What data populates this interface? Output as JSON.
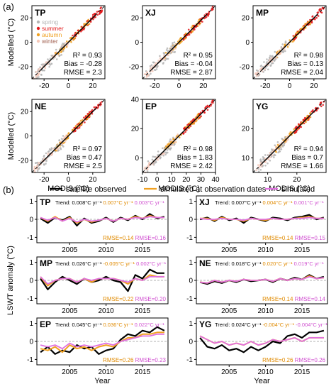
{
  "panel_a_label": "(a)",
  "panel_b_label": "(b)",
  "scatter": {
    "ylabel": "Modelled (°C)",
    "xlabel": "MODIS (°C)",
    "legend": [
      {
        "name": "spring",
        "color": "#b5b5b5"
      },
      {
        "name": "summer",
        "color": "#e31a1c"
      },
      {
        "name": "autumn",
        "color": "#f0a020"
      },
      {
        "name": "winter",
        "color": "#f6c8b8"
      }
    ],
    "panels": [
      {
        "id": "TP",
        "xlim": [
          -30,
          30
        ],
        "ylim": [
          -30,
          30
        ],
        "xticks": [
          -20,
          0,
          20
        ],
        "yticks": [
          -20,
          0,
          20
        ],
        "r2": "R² = 0.93",
        "bias": "Bias = -0.28",
        "rmse": "RMSE = 2.3"
      },
      {
        "id": "XJ",
        "xlim": [
          -30,
          30
        ],
        "ylim": [
          -30,
          30
        ],
        "xticks": [
          -20,
          0,
          20
        ],
        "yticks": [
          -20,
          0,
          20
        ],
        "r2": "R² = 0.95",
        "bias": "Bias = -0.04",
        "rmse": "RMSE = 2.87"
      },
      {
        "id": "MP",
        "xlim": [
          -30,
          30
        ],
        "ylim": [
          -30,
          30
        ],
        "xticks": [
          -20,
          0,
          20
        ],
        "yticks": [
          -20,
          0,
          20
        ],
        "r2": "R² = 0.98",
        "bias": "Bias = 0.13",
        "rmse": "RMSE = 2.04"
      },
      {
        "id": "NE",
        "xlim": [
          -30,
          30
        ],
        "ylim": [
          -30,
          30
        ],
        "xticks": [
          -20,
          0,
          20
        ],
        "yticks": [
          -20,
          0,
          20
        ],
        "r2": "R² = 0.97",
        "bias": "Bias = 0.47",
        "rmse": "RMSE = 2.5"
      },
      {
        "id": "EP",
        "xlim": [
          -10,
          40
        ],
        "ylim": [
          -10,
          40
        ],
        "xticks": [
          -10,
          0,
          10,
          20,
          30,
          40
        ],
        "yticks": [
          0,
          20,
          40
        ],
        "r2": "R² = 0.98",
        "bias": "Bias = 1.83",
        "rmse": "RMSE = 2.42"
      },
      {
        "id": "YG",
        "xlim": [
          5,
          30
        ],
        "ylim": [
          5,
          30
        ],
        "xticks": [
          10,
          20
        ],
        "yticks": [
          10,
          20
        ],
        "r2": "R² = 0.94",
        "bias": "Bias = 0.7",
        "rmse": "RMSE = 1.66"
      }
    ]
  },
  "timeseries": {
    "ylabel": "LSWT anomaly (°C)",
    "xlabel": "Year",
    "legend": [
      {
        "name": "satellite observed",
        "color": "#000000"
      },
      {
        "name": "simulated at observation dates",
        "color": "#f0a020"
      },
      {
        "name": "simulated",
        "color": "#e070e0"
      }
    ],
    "years": [
      2001,
      2002,
      2003,
      2004,
      2005,
      2006,
      2007,
      2008,
      2009,
      2010,
      2011,
      2012,
      2013,
      2014,
      2015,
      2016,
      2017,
      2018
    ],
    "xticks": [
      2005,
      2010,
      2015
    ],
    "yticks": [
      -1,
      0,
      1
    ],
    "ylim": [
      -1.3,
      1.3
    ],
    "panels": [
      {
        "id": "TP",
        "trend_label": "Trend:",
        "trend_obs": "0.008°C yr⁻¹",
        "trend_simobs": "0.007°C yr⁻¹",
        "trend_sim": "0.003°C yr⁻¹",
        "rmse_simobs": "RMSE=0.14",
        "rmse_sim": "RMSE=0.16",
        "series": {
          "observed": [
            0.05,
            -0.2,
            0.1,
            -0.05,
            0.15,
            -0.35,
            0.05,
            -0.2,
            -0.1,
            0.1,
            -0.15,
            0.1,
            -0.05,
            0.2,
            0.0,
            0.3,
            0.05,
            0.15
          ],
          "simobs": [
            0.1,
            -0.1,
            0.15,
            -0.1,
            0.1,
            -0.2,
            0.0,
            -0.15,
            -0.05,
            0.05,
            -0.1,
            0.05,
            0.0,
            0.15,
            0.05,
            0.2,
            0.1,
            0.1
          ],
          "sim": [
            0.1,
            -0.05,
            0.1,
            -0.1,
            0.05,
            -0.15,
            0.0,
            -0.1,
            -0.05,
            0.05,
            -0.1,
            0.05,
            0.0,
            0.1,
            0.05,
            0.15,
            0.1,
            0.1
          ]
        }
      },
      {
        "id": "XJ",
        "trend_label": "Trend:",
        "trend_obs": "0.007°C yr⁻¹",
        "trend_simobs": "0.004°C yr⁻¹",
        "trend_sim": "0.001°C yr⁻¹",
        "rmse_simobs": "RMSE=0.14",
        "rmse_sim": "RMSE=0.15",
        "series": {
          "observed": [
            0.0,
            0.1,
            -0.1,
            0.15,
            -0.05,
            0.05,
            -0.2,
            0.1,
            0.0,
            -0.1,
            0.1,
            0.05,
            -0.05,
            0.1,
            0.15,
            0.25,
            0.0,
            0.1
          ],
          "simobs": [
            0.05,
            0.05,
            -0.05,
            0.1,
            0.0,
            0.0,
            -0.1,
            0.05,
            0.0,
            -0.05,
            0.05,
            0.0,
            0.0,
            0.05,
            0.1,
            0.15,
            0.05,
            0.05
          ],
          "sim": [
            0.05,
            0.0,
            0.0,
            0.05,
            0.0,
            0.0,
            -0.05,
            0.05,
            0.0,
            0.0,
            0.05,
            0.0,
            0.0,
            0.05,
            0.05,
            0.1,
            0.05,
            0.05
          ]
        }
      },
      {
        "id": "MP",
        "trend_label": "Trend:",
        "trend_obs": "0.026°C yr⁻¹",
        "trend_simobs": "-0.005°C yr⁻¹",
        "trend_sim": "0.002°C yr⁻¹",
        "rmse_simobs": "RMSE=0.22",
        "rmse_sim": "RMSE=0.20",
        "series": {
          "observed": [
            0.1,
            -0.5,
            -0.1,
            0.2,
            0.0,
            -0.2,
            0.1,
            -0.1,
            0.0,
            0.2,
            0.0,
            -0.1,
            -0.6,
            0.3,
            0.1,
            0.6,
            0.4,
            0.4
          ],
          "simobs": [
            0.2,
            -0.3,
            0.0,
            0.1,
            0.1,
            -0.1,
            0.1,
            -0.1,
            0.1,
            0.1,
            0.1,
            0.0,
            -0.2,
            0.1,
            0.0,
            0.3,
            0.2,
            0.2
          ],
          "sim": [
            0.2,
            -0.2,
            0.0,
            0.1,
            0.1,
            -0.1,
            0.1,
            0.0,
            0.1,
            0.1,
            0.1,
            0.0,
            -0.1,
            0.1,
            0.0,
            0.2,
            0.2,
            0.2
          ]
        }
      },
      {
        "id": "NE",
        "trend_label": "Trend:",
        "trend_obs": "0.018°C yr⁻¹",
        "trend_simobs": "0.020°C yr⁻¹",
        "trend_sim": "0.019°C yr⁻¹",
        "rmse_simobs": "RMSE=0.14",
        "rmse_sim": "RMSE=0.14",
        "series": {
          "observed": [
            -0.1,
            -0.2,
            -0.05,
            -0.15,
            0.0,
            -0.1,
            0.05,
            -0.05,
            0.0,
            0.05,
            -0.1,
            0.1,
            0.0,
            0.15,
            0.05,
            0.3,
            0.1,
            0.2
          ],
          "simobs": [
            -0.1,
            -0.15,
            0.0,
            -0.1,
            0.0,
            -0.05,
            0.05,
            0.0,
            0.0,
            0.05,
            -0.05,
            0.1,
            0.0,
            0.1,
            0.05,
            0.25,
            0.1,
            0.15
          ],
          "sim": [
            -0.1,
            -0.15,
            0.0,
            -0.1,
            0.0,
            -0.05,
            0.05,
            0.0,
            0.0,
            0.05,
            -0.05,
            0.1,
            0.0,
            0.1,
            0.05,
            0.2,
            0.1,
            0.15
          ]
        }
      },
      {
        "id": "EP",
        "trend_label": "Trend:",
        "trend_obs": "0.045°C yr⁻¹",
        "trend_simobs": "0.036°C yr⁻¹",
        "trend_sim": "0.022°C yr⁻¹",
        "rmse_simobs": "RMSE=0.26",
        "rmse_sim": "RMSE=0.23",
        "series": {
          "observed": [
            -0.6,
            -0.3,
            -0.7,
            -0.5,
            -0.6,
            -0.2,
            -0.4,
            -0.3,
            -0.7,
            -0.5,
            -0.4,
            0.1,
            0.4,
            0.3,
            0.6,
            0.5,
            0.8,
            0.6
          ],
          "simobs": [
            -0.4,
            -0.5,
            -0.3,
            -0.6,
            -0.2,
            -0.4,
            -0.3,
            -0.5,
            -0.3,
            -0.2,
            -0.3,
            0.0,
            0.2,
            0.2,
            0.4,
            0.4,
            0.5,
            0.5
          ],
          "sim": [
            -0.2,
            -0.3,
            -0.2,
            -0.4,
            -0.1,
            -0.3,
            -0.2,
            -0.3,
            -0.2,
            -0.1,
            -0.2,
            0.0,
            0.1,
            0.2,
            0.3,
            0.3,
            0.4,
            0.4
          ]
        }
      },
      {
        "id": "YG",
        "trend_label": "Trend:",
        "trend_obs": "0.024°C yr⁻¹",
        "trend_simobs": "-0.004°C yr⁻¹",
        "trend_sim": "-0.004°C yr⁻¹",
        "rmse_simobs": "RMSE=0.26",
        "rmse_sim": "RMSE=0.26",
        "series": {
          "observed": [
            0.2,
            -0.3,
            -0.4,
            -0.2,
            -0.5,
            -0.4,
            -0.6,
            -0.3,
            -0.5,
            -0.3,
            0.0,
            -0.1,
            0.3,
            0.4,
            0.2,
            0.5,
            0.5,
            0.6
          ],
          "simobs": [
            0.3,
            0.1,
            -0.1,
            0.0,
            -0.2,
            -0.1,
            -0.2,
            0.0,
            -0.2,
            -0.1,
            0.1,
            0.0,
            0.1,
            0.2,
            0.0,
            0.2,
            0.2,
            0.2
          ],
          "sim": [
            0.3,
            0.1,
            -0.1,
            0.0,
            -0.2,
            -0.1,
            -0.2,
            0.0,
            -0.2,
            -0.1,
            0.1,
            0.0,
            0.1,
            0.2,
            0.0,
            0.2,
            0.2,
            0.2
          ]
        }
      }
    ]
  }
}
